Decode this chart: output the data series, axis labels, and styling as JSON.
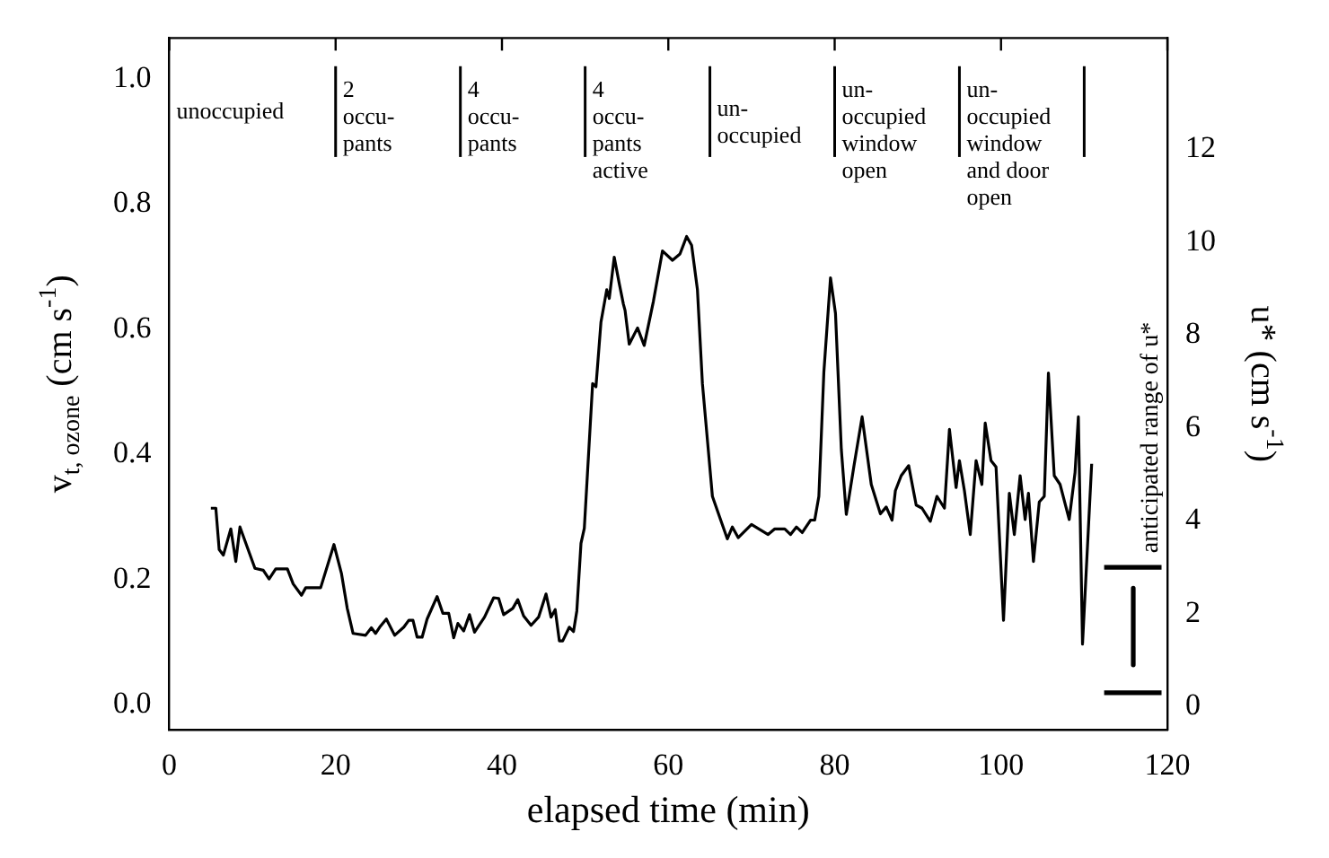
{
  "chart_data": {
    "type": "line",
    "xlabel": "elapsed time (min)",
    "ylabel": "v$_{t, ozone}$ (cm s$^{-1}$)",
    "y2label": "u* (cm s$^{-1}$)",
    "xlim": [
      0,
      120
    ],
    "xticks": [
      0,
      20,
      40,
      60,
      80,
      100,
      120
    ],
    "ylim": [
      -0.04,
      1.065
    ],
    "yticks": [
      {
        "value": 0,
        "label": "0.0"
      },
      {
        "value": 0.2,
        "label": "0.2"
      },
      {
        "value": 0.4,
        "label": "0.4"
      },
      {
        "value": 0.6,
        "label": "0.6"
      },
      {
        "value": 0.8,
        "label": "0.8"
      },
      {
        "value": 1,
        "label": "1.0"
      }
    ],
    "y2lim": [
      -0.5,
      14.4
    ],
    "y2ticks": [
      0,
      2,
      4,
      6,
      8,
      10,
      12
    ],
    "grid": false,
    "legend": false,
    "marker": "none",
    "line_style": "solid",
    "ref_lines": [
      {
        "axis": "x",
        "value": 20
      },
      {
        "axis": "x",
        "value": 35
      },
      {
        "axis": "x",
        "value": 50
      },
      {
        "axis": "x",
        "value": 65
      },
      {
        "axis": "x",
        "value": 80
      },
      {
        "axis": "x",
        "value": 95
      },
      {
        "axis": "x",
        "value": 110
      }
    ],
    "annotations": [
      "unoccupied",
      {
        "text": "2\noccu-\npants",
        "x": 20,
        "y": 1.0
      },
      {
        "text": "4\noccu-\npants",
        "x": 35,
        "y": 1.0
      },
      {
        "text": "4\noccu-\npants\nactive",
        "x": 50,
        "y": 1.0
      },
      {
        "text": "un-\noccupied",
        "x": 65,
        "y": 0.97
      },
      {
        "text": "un-\noccupied\nwindow\nopen",
        "x": 80,
        "y": 1.0
      },
      {
        "text": "un-\noccupied\nwindow\nand door\nopen",
        "x": 95,
        "y": 1.0
      }
    ],
    "series": [
      {
        "color": "#000000",
        "x": [
          5,
          5.6,
          6.0,
          6.5,
          7.4,
          8.0,
          8.5,
          10.3,
          11.3,
          12.0,
          12.8,
          14.2,
          14.9,
          15.9,
          16.4,
          18.2,
          19.8,
          20.7,
          21.4,
          22.1,
          23.6,
          24.3,
          24.8,
          25.3,
          26.1,
          27.1,
          28.2,
          28.8,
          29.3,
          29.8,
          30.4,
          31.0,
          32.2,
          32.9,
          33.6,
          34.2,
          34.7,
          35.4,
          36.1,
          36.7,
          37.9,
          39.0,
          39.6,
          40.2,
          41.3,
          41.9,
          42.6,
          43.5,
          44.4,
          45.3,
          45.9,
          46.4,
          46.9,
          47.3,
          48.1,
          48.6,
          49.0,
          49.5,
          49.9,
          50.9,
          51.3,
          51.9,
          52.6,
          52.9,
          53.5,
          54.1,
          54.6,
          54.8,
          55.3,
          56.3,
          57.1,
          58.2,
          59.3,
          60.5,
          61.4,
          62.2,
          62.8,
          63.5,
          64.1,
          65.3,
          66.3,
          67.1,
          67.7,
          68.4,
          70.0,
          72.0,
          72.8,
          74.0,
          74.7,
          75.4,
          76.1,
          77.1,
          77.6,
          78.1,
          78.7,
          79.5,
          80.1,
          80.8,
          81.4,
          82.3,
          83.3,
          84.4,
          85.5,
          86.2,
          86.9,
          87.3,
          88.0,
          88.9,
          89.8,
          90.5,
          91.5,
          92.3,
          93.2,
          93.8,
          94.6,
          95.0,
          95.6,
          96.3,
          97.0,
          97.7,
          98.1,
          98.8,
          99.4,
          100.3,
          101.0,
          101.6,
          102.3,
          102.9,
          103.3,
          103.9,
          104.6,
          105.2,
          105.7,
          106.4,
          107.1,
          108.2,
          108.9,
          109.3,
          109.8,
          110.9
        ],
        "values": [
          0.314,
          0.314,
          0.248,
          0.239,
          0.281,
          0.229,
          0.284,
          0.218,
          0.215,
          0.201,
          0.217,
          0.217,
          0.193,
          0.175,
          0.187,
          0.187,
          0.256,
          0.21,
          0.154,
          0.114,
          0.111,
          0.123,
          0.114,
          0.124,
          0.137,
          0.111,
          0.124,
          0.135,
          0.135,
          0.108,
          0.108,
          0.137,
          0.173,
          0.146,
          0.146,
          0.107,
          0.13,
          0.118,
          0.144,
          0.116,
          0.14,
          0.171,
          0.17,
          0.144,
          0.154,
          0.168,
          0.142,
          0.127,
          0.14,
          0.177,
          0.14,
          0.152,
          0.102,
          0.102,
          0.124,
          0.117,
          0.15,
          0.258,
          0.282,
          0.513,
          0.508,
          0.611,
          0.663,
          0.649,
          0.715,
          0.673,
          0.64,
          0.63,
          0.576,
          0.602,
          0.574,
          0.644,
          0.725,
          0.71,
          0.72,
          0.748,
          0.734,
          0.663,
          0.513,
          0.333,
          0.295,
          0.265,
          0.284,
          0.267,
          0.288,
          0.272,
          0.281,
          0.281,
          0.272,
          0.284,
          0.275,
          0.295,
          0.295,
          0.333,
          0.531,
          0.682,
          0.625,
          0.408,
          0.304,
          0.38,
          0.46,
          0.352,
          0.305,
          0.316,
          0.295,
          0.342,
          0.366,
          0.382,
          0.319,
          0.314,
          0.293,
          0.333,
          0.314,
          0.44,
          0.347,
          0.39,
          0.342,
          0.272,
          0.39,
          0.352,
          0.45,
          0.39,
          0.38,
          0.135,
          0.338,
          0.272,
          0.366,
          0.296,
          0.338,
          0.229,
          0.324,
          0.333,
          0.53,
          0.366,
          0.352,
          0.296,
          0.371,
          0.46,
          0.097,
          0.385
        ]
      },
      {
        "name": "anticipated range of u*",
        "type": "line",
        "axis": "y2",
        "color": "#000000",
        "x": [
          112.4,
          119.3
        ],
        "values": [
          3,
          3
        ]
      },
      {
        "type": "line",
        "axis": "y2",
        "color": "#000000",
        "x": [
          115.9,
          115.9
        ],
        "values": [
          2.55,
          0.9
        ]
      },
      {
        "type": "line",
        "axis": "y2",
        "color": "#000000",
        "x": [
          112.4,
          119.3
        ],
        "values": [
          0.3,
          0.3
        ]
      }
    ]
  }
}
